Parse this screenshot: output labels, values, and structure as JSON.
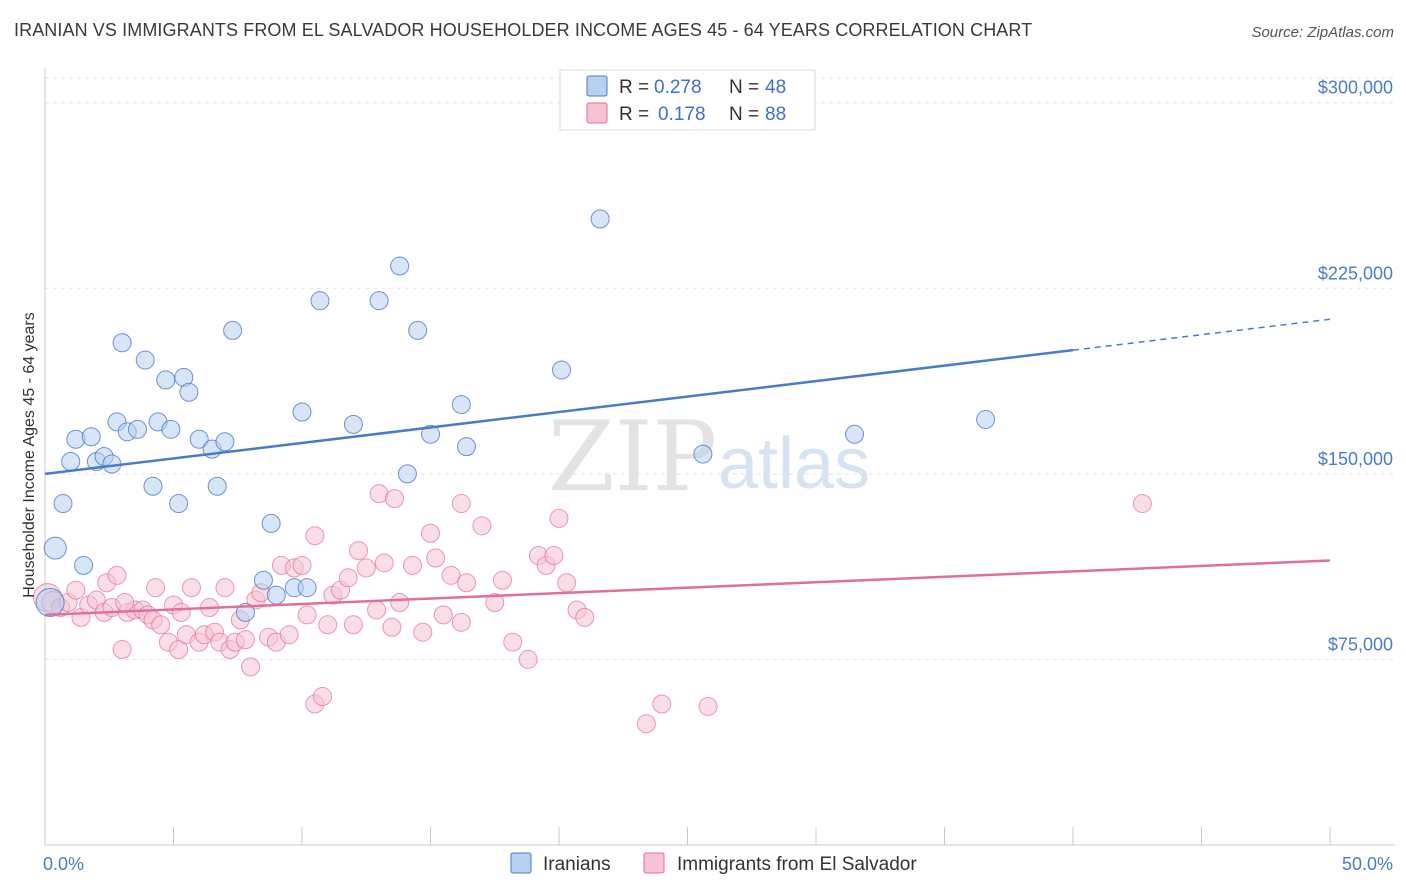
{
  "title": "IRANIAN VS IMMIGRANTS FROM EL SALVADOR HOUSEHOLDER INCOME AGES 45 - 64 YEARS CORRELATION CHART",
  "source": "Source: ZipAtlas.com",
  "watermark": {
    "zip": "ZIP",
    "atlas": "atlas"
  },
  "legend_top": {
    "rows": [
      {
        "r_label": "R =",
        "r_value": "0.278",
        "n_label": "N =",
        "n_value": "48"
      },
      {
        "r_label": "R =",
        "r_value": "0.178",
        "n_label": "N =",
        "n_value": "88"
      }
    ]
  },
  "legend_bottom": [
    "Iranians",
    "Immigrants from El Salvador"
  ],
  "chart_data": {
    "type": "scatter",
    "title": "IRANIAN VS IMMIGRANTS FROM EL SALVADOR HOUSEHOLDER INCOME AGES 45 - 64 YEARS CORRELATION CHART",
    "xlabel": "",
    "ylabel": "Householder Income Ages 45 - 64 years",
    "xlim": [
      0,
      50
    ],
    "ylim": [
      0,
      310000
    ],
    "x_tick_labels": [
      "0.0%",
      "50.0%"
    ],
    "y_ticks": [
      75000,
      150000,
      225000,
      300000
    ],
    "y_tick_labels": [
      "$75,000",
      "$150,000",
      "$225,000",
      "$300,000"
    ],
    "grid": true,
    "legend_position": "top-center",
    "colors": {
      "Iranians": "#4a7bc8",
      "Immigrants from El Salvador": "#e0709a",
      "iran_fill": "#b8d0f0",
      "salv_fill": "#f6c3d3"
    },
    "series": [
      {
        "name": "Iranians",
        "trend": {
          "x0": 0,
          "y0": 150000,
          "x1": 50,
          "y1": 212500,
          "solid_until_x": 40
        },
        "points": [
          [
            0.2,
            98000,
            14
          ],
          [
            0.4,
            120000,
            11
          ],
          [
            0.7,
            138000,
            9
          ],
          [
            1.0,
            155000,
            9
          ],
          [
            1.2,
            164000,
            9
          ],
          [
            1.5,
            113000,
            9
          ],
          [
            1.8,
            165000,
            9
          ],
          [
            2.0,
            155000,
            9
          ],
          [
            2.3,
            157000,
            9
          ],
          [
            2.6,
            154000,
            9
          ],
          [
            2.8,
            171000,
            9
          ],
          [
            3.0,
            203000,
            9
          ],
          [
            3.2,
            167000,
            9
          ],
          [
            3.6,
            168000,
            9
          ],
          [
            3.9,
            196000,
            9
          ],
          [
            4.2,
            145000,
            9
          ],
          [
            4.4,
            171000,
            9
          ],
          [
            4.7,
            188000,
            9
          ],
          [
            4.9,
            168000,
            9
          ],
          [
            5.2,
            138000,
            9
          ],
          [
            5.4,
            189000,
            9
          ],
          [
            5.6,
            183000,
            9
          ],
          [
            6.0,
            164000,
            9
          ],
          [
            6.5,
            160000,
            9
          ],
          [
            6.7,
            145000,
            9
          ],
          [
            7.0,
            163000,
            9
          ],
          [
            7.3,
            208000,
            9
          ],
          [
            7.8,
            94000,
            9
          ],
          [
            8.5,
            107000,
            9
          ],
          [
            8.8,
            130000,
            9
          ],
          [
            9.0,
            101000,
            9
          ],
          [
            9.7,
            104000,
            9
          ],
          [
            10.2,
            104000,
            9
          ],
          [
            10.0,
            175000,
            9
          ],
          [
            10.7,
            220000,
            9
          ],
          [
            12.0,
            170000,
            9
          ],
          [
            13.0,
            220000,
            9
          ],
          [
            13.8,
            234000,
            9
          ],
          [
            14.1,
            150000,
            9
          ],
          [
            14.5,
            208000,
            9
          ],
          [
            15.0,
            166000,
            9
          ],
          [
            16.2,
            178000,
            9
          ],
          [
            16.4,
            161000,
            9
          ],
          [
            20.1,
            192000,
            9
          ],
          [
            21.6,
            253000,
            9
          ],
          [
            25.6,
            158000,
            9
          ],
          [
            31.5,
            166000,
            9
          ],
          [
            36.6,
            172000,
            9
          ]
        ]
      },
      {
        "name": "Immigrants from El Salvador",
        "trend": {
          "x0": 0,
          "y0": 93000,
          "x1": 50,
          "y1": 115000
        },
        "points": [
          [
            0.1,
            100000,
            14
          ],
          [
            0.3,
            98000,
            11
          ],
          [
            0.6,
            96000,
            9
          ],
          [
            0.9,
            98000,
            9
          ],
          [
            1.2,
            103000,
            9
          ],
          [
            1.4,
            92000,
            9
          ],
          [
            1.7,
            97000,
            9
          ],
          [
            2.0,
            99000,
            9
          ],
          [
            2.3,
            94000,
            9
          ],
          [
            2.4,
            106000,
            9
          ],
          [
            2.6,
            96000,
            9
          ],
          [
            2.8,
            109000,
            9
          ],
          [
            3.0,
            79000,
            9
          ],
          [
            3.2,
            94000,
            9
          ],
          [
            3.5,
            95000,
            9
          ],
          [
            3.8,
            95000,
            9
          ],
          [
            4.0,
            93000,
            9
          ],
          [
            4.2,
            91000,
            9
          ],
          [
            4.3,
            104000,
            9
          ],
          [
            4.5,
            89000,
            9
          ],
          [
            4.8,
            82000,
            9
          ],
          [
            5.0,
            97000,
            9
          ],
          [
            5.2,
            79000,
            9
          ],
          [
            5.3,
            94000,
            9
          ],
          [
            5.5,
            85000,
            9
          ],
          [
            5.7,
            104000,
            9
          ],
          [
            6.0,
            82000,
            9
          ],
          [
            6.2,
            85000,
            9
          ],
          [
            6.4,
            96000,
            9
          ],
          [
            6.6,
            86000,
            9
          ],
          [
            6.8,
            82000,
            9
          ],
          [
            7.0,
            104000,
            9
          ],
          [
            7.2,
            79000,
            9
          ],
          [
            7.4,
            82000,
            9
          ],
          [
            7.6,
            91000,
            9
          ],
          [
            7.8,
            83000,
            9
          ],
          [
            8.0,
            72000,
            9
          ],
          [
            8.2,
            99000,
            9
          ],
          [
            8.4,
            102000,
            9
          ],
          [
            8.7,
            84000,
            9
          ],
          [
            9.0,
            82000,
            9
          ],
          [
            9.2,
            113000,
            9
          ],
          [
            9.5,
            85000,
            9
          ],
          [
            9.7,
            112000,
            9
          ],
          [
            10.0,
            113000,
            9
          ],
          [
            10.2,
            93000,
            9
          ],
          [
            10.5,
            125000,
            9
          ],
          [
            10.5,
            57000,
            9
          ],
          [
            10.8,
            60000,
            9
          ],
          [
            11.0,
            89000,
            9
          ],
          [
            11.2,
            101000,
            9
          ],
          [
            11.5,
            103000,
            9
          ],
          [
            11.8,
            108000,
            9
          ],
          [
            12.0,
            89000,
            9
          ],
          [
            12.2,
            119000,
            9
          ],
          [
            12.5,
            112000,
            9
          ],
          [
            12.9,
            95000,
            9
          ],
          [
            13.2,
            114000,
            9
          ],
          [
            13.5,
            88000,
            9
          ],
          [
            13.8,
            98000,
            9
          ],
          [
            14.3,
            113000,
            9
          ],
          [
            14.7,
            86000,
            9
          ],
          [
            15.0,
            126000,
            9
          ],
          [
            15.2,
            116000,
            9
          ],
          [
            15.5,
            93000,
            9
          ],
          [
            15.8,
            109000,
            9
          ],
          [
            16.2,
            90000,
            9
          ],
          [
            16.4,
            106000,
            9
          ],
          [
            17.0,
            129000,
            9
          ],
          [
            17.5,
            98000,
            9
          ],
          [
            17.8,
            107000,
            9
          ],
          [
            18.2,
            82000,
            9
          ],
          [
            18.8,
            75000,
            9
          ],
          [
            19.2,
            117000,
            9
          ],
          [
            19.5,
            113000,
            9
          ],
          [
            19.8,
            117000,
            9
          ],
          [
            20.0,
            132000,
            9
          ],
          [
            20.3,
            106000,
            9
          ],
          [
            20.7,
            95000,
            9
          ],
          [
            21.0,
            92000,
            9
          ],
          [
            13.0,
            142000,
            9
          ],
          [
            13.6,
            140000,
            9
          ],
          [
            16.2,
            138000,
            9
          ],
          [
            23.4,
            49000,
            9
          ],
          [
            24.0,
            57000,
            9
          ],
          [
            25.8,
            56000,
            9
          ],
          [
            42.7,
            138000,
            9
          ],
          [
            3.1,
            98000,
            9
          ]
        ]
      }
    ]
  }
}
